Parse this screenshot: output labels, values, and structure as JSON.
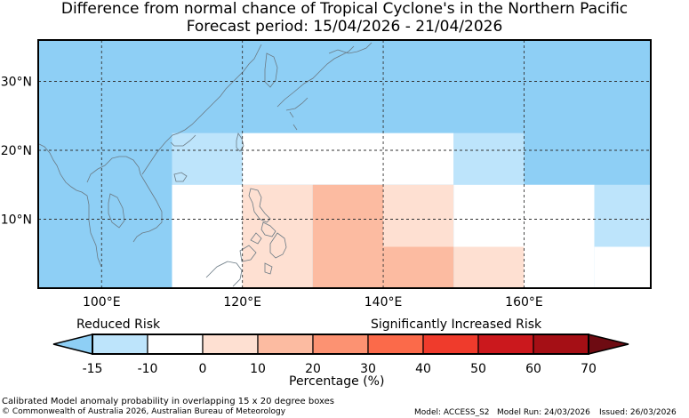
{
  "title_line1": "Difference from normal chance of Tropical Cyclone's in the Northern Pacific",
  "title_line2": "Forecast period: 15/04/2026 - 21/04/2026",
  "map": {
    "lon_range": [
      91,
      178
    ],
    "lat_range": [
      0,
      36
    ],
    "lon_ticks": [
      {
        "value": 100,
        "label": "100°E"
      },
      {
        "value": 120,
        "label": "120°E"
      },
      {
        "value": 140,
        "label": "140°E"
      },
      {
        "value": 160,
        "label": "160°E"
      }
    ],
    "lat_ticks": [
      {
        "value": 10,
        "label": "10°N"
      },
      {
        "value": 20,
        "label": "20°N"
      },
      {
        "value": 30,
        "label": "30°N"
      }
    ],
    "grid": true,
    "background_class": "-15 to -10"
  },
  "cells": [
    {
      "lon": [
        110,
        120
      ],
      "lat": [
        15,
        22.5
      ],
      "class": "-15 to -10"
    },
    {
      "lon": [
        120,
        150
      ],
      "lat": [
        15,
        22.5
      ],
      "class": "-10 to 0"
    },
    {
      "lon": [
        150,
        160
      ],
      "lat": [
        15,
        22.5
      ],
      "class": "-15 to -10"
    },
    {
      "lon": [
        110,
        120
      ],
      "lat": [
        0,
        15
      ],
      "class": "-10 to 0"
    },
    {
      "lon": [
        120,
        130
      ],
      "lat": [
        0,
        15
      ],
      "class": "0 to 10"
    },
    {
      "lon": [
        130,
        140
      ],
      "lat": [
        0,
        15
      ],
      "class": "10 to 20"
    },
    {
      "lon": [
        140,
        150
      ],
      "lat": [
        6,
        15
      ],
      "class": "0 to 10"
    },
    {
      "lon": [
        140,
        150
      ],
      "lat": [
        0,
        6
      ],
      "class": "10 to 20"
    },
    {
      "lon": [
        150,
        160
      ],
      "lat": [
        6,
        15
      ],
      "class": "-10 to 0"
    },
    {
      "lon": [
        150,
        160
      ],
      "lat": [
        0,
        6
      ],
      "class": "0 to 10"
    },
    {
      "lon": [
        160,
        170
      ],
      "lat": [
        0,
        15
      ],
      "class": "-10 to 0"
    },
    {
      "lon": [
        170,
        178
      ],
      "lat": [
        6,
        15
      ],
      "class": "-15 to -10"
    },
    {
      "lon": [
        170,
        178
      ],
      "lat": [
        0,
        6
      ],
      "class": "-10 to 0"
    }
  ],
  "legend": {
    "reduced_label": "Reduced Risk",
    "increased_label": "Significantly Increased Risk",
    "xlabel": "Percentage (%)",
    "ticks": [
      "-15",
      "-10",
      "0",
      "10",
      "20",
      "30",
      "40",
      "50",
      "60",
      "70"
    ],
    "under_color": "#8ecff5",
    "over_color": "#6e0b12",
    "bins": [
      {
        "range": "-15 to -10",
        "color": "#bde4fb"
      },
      {
        "range": "-10 to 0",
        "color": "#ffffff"
      },
      {
        "range": "0 to 10",
        "color": "#fee0d2"
      },
      {
        "range": "10 to 20",
        "color": "#fcbba1"
      },
      {
        "range": "20 to 30",
        "color": "#fc9272"
      },
      {
        "range": "30 to 40",
        "color": "#fb6a4a"
      },
      {
        "range": "40 to 50",
        "color": "#ef3b2c"
      },
      {
        "range": "50 to 60",
        "color": "#cb181d"
      },
      {
        "range": "60 to 70",
        "color": "#a50f15"
      }
    ]
  },
  "footer": {
    "note": "Calibrated Model anomaly probability in overlapping 15 x 20 degree boxes",
    "copyright": "© Commonwealth of Australia 2026, Australian Bureau of Meteorology",
    "model": "Model: ACCESS_S2",
    "model_run": "Model Run: 24/03/2026",
    "issued": "Issued: 26/03/2026"
  }
}
